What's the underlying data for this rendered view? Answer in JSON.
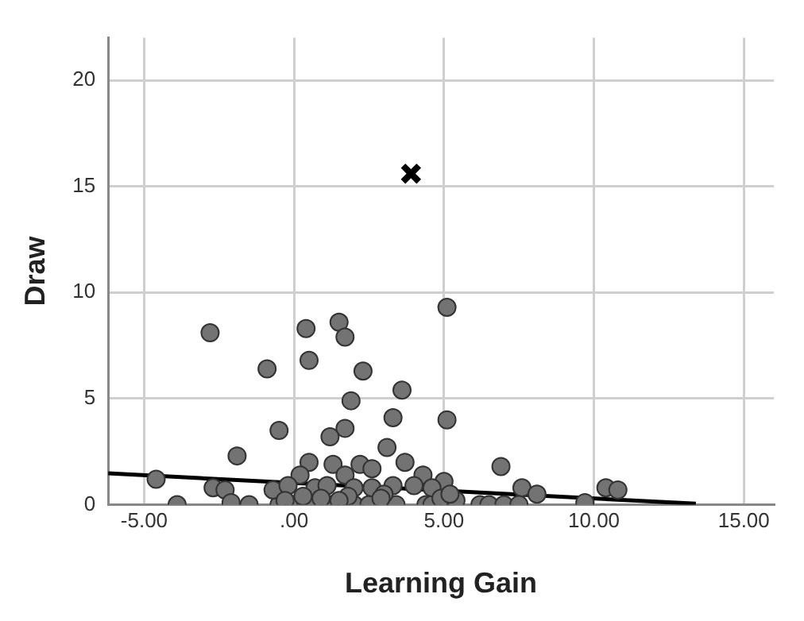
{
  "chart_data": {
    "type": "scatter",
    "xlabel": "Learning Gain",
    "ylabel": "Draw",
    "xlim": [
      -6.2,
      16
    ],
    "ylim": [
      0,
      22
    ],
    "xticks": [
      {
        "value": -5,
        "label": "-5.00"
      },
      {
        "value": 0,
        "label": ".00"
      },
      {
        "value": 5,
        "label": "5.00"
      },
      {
        "value": 10,
        "label": "10.00"
      },
      {
        "value": 15,
        "label": "15.00"
      }
    ],
    "yticks": [
      0,
      5,
      10,
      15,
      20
    ],
    "grid": true,
    "legend": false,
    "series": [
      {
        "type": "scatter",
        "color": "#737373",
        "marker": "circle",
        "x": [
          -2.8,
          0.4,
          1.5,
          1.7,
          5.1,
          0.5,
          -0.9,
          2.3,
          3.6,
          1.9,
          3.3,
          5.1,
          -0.5,
          1.7,
          1.2,
          3.1,
          -1.9,
          0.5,
          1.3,
          2.2,
          2.6,
          3.7,
          6.9,
          4.3,
          1.7,
          0.2,
          5.0,
          -4.6,
          -2.7,
          -2.3,
          7.6,
          8.1,
          10.4,
          10.8,
          9.7,
          -3.9,
          -2.1,
          -1.5,
          -0.5,
          0.0,
          0.4,
          1.2,
          2.0,
          2.5,
          3.4,
          4.4,
          4.6,
          5.4,
          6.2,
          6.5,
          7.0,
          7.5,
          -0.7,
          -0.2,
          0.7,
          1.1,
          2.0,
          2.6,
          3.3,
          4.0,
          4.6,
          3.0,
          1.8,
          0.3,
          0.9,
          2.9,
          4.9,
          5.2,
          -0.3,
          1.5
        ],
        "values": [
          8.1,
          8.3,
          8.6,
          7.9,
          9.3,
          6.8,
          6.4,
          6.3,
          5.4,
          4.9,
          4.1,
          4.0,
          3.5,
          3.6,
          3.2,
          2.7,
          2.3,
          2.0,
          1.9,
          1.9,
          1.7,
          2.0,
          1.8,
          1.4,
          1.4,
          1.4,
          1.1,
          1.2,
          0.8,
          0.7,
          0.8,
          0.5,
          0.8,
          0.7,
          0.1,
          0,
          0.1,
          0,
          0,
          0,
          0,
          0,
          0,
          0,
          0,
          0,
          0,
          0.2,
          0,
          0,
          0,
          0,
          0.7,
          0.9,
          0.8,
          0.9,
          0.8,
          0.8,
          0.9,
          0.9,
          0.8,
          0.5,
          0.4,
          0.4,
          0.3,
          0.3,
          0.3,
          0.5,
          0.2,
          0.2
        ]
      },
      {
        "type": "scatter",
        "color": "#000000",
        "marker": "cross",
        "x": [
          3.9
        ],
        "values": [
          15.6
        ]
      },
      {
        "type": "line",
        "color": "#000000",
        "marker": "none",
        "x": [
          -6.2,
          13.4
        ],
        "values": [
          1.48,
          0.05
        ]
      }
    ]
  }
}
